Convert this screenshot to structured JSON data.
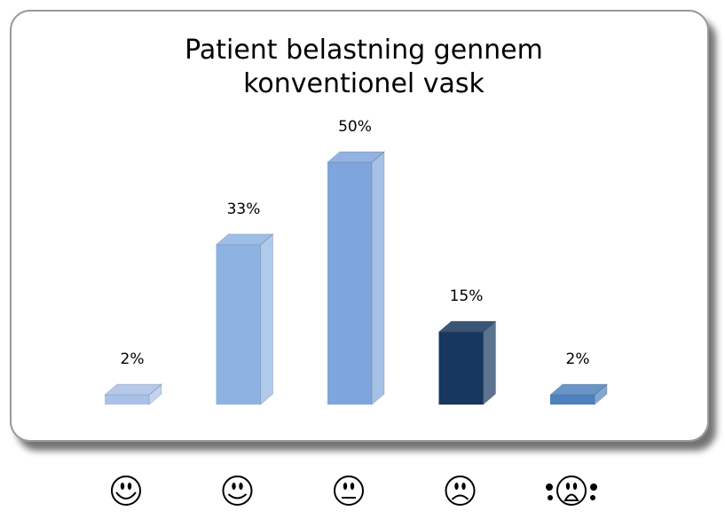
{
  "chart_data": {
    "type": "bar3d",
    "title": "Patient belastning gennem konventionel vask",
    "categories": [
      null,
      null,
      null,
      null,
      null
    ],
    "values": [
      2,
      33,
      50,
      15,
      2
    ],
    "value_labels": [
      "2%",
      "33%",
      "50%",
      "15%",
      "2%"
    ],
    "colors": [
      "#a9c0e8",
      "#8db3e2",
      "#7fa6dc",
      "#17375e",
      "#4f81bd"
    ]
  }
}
